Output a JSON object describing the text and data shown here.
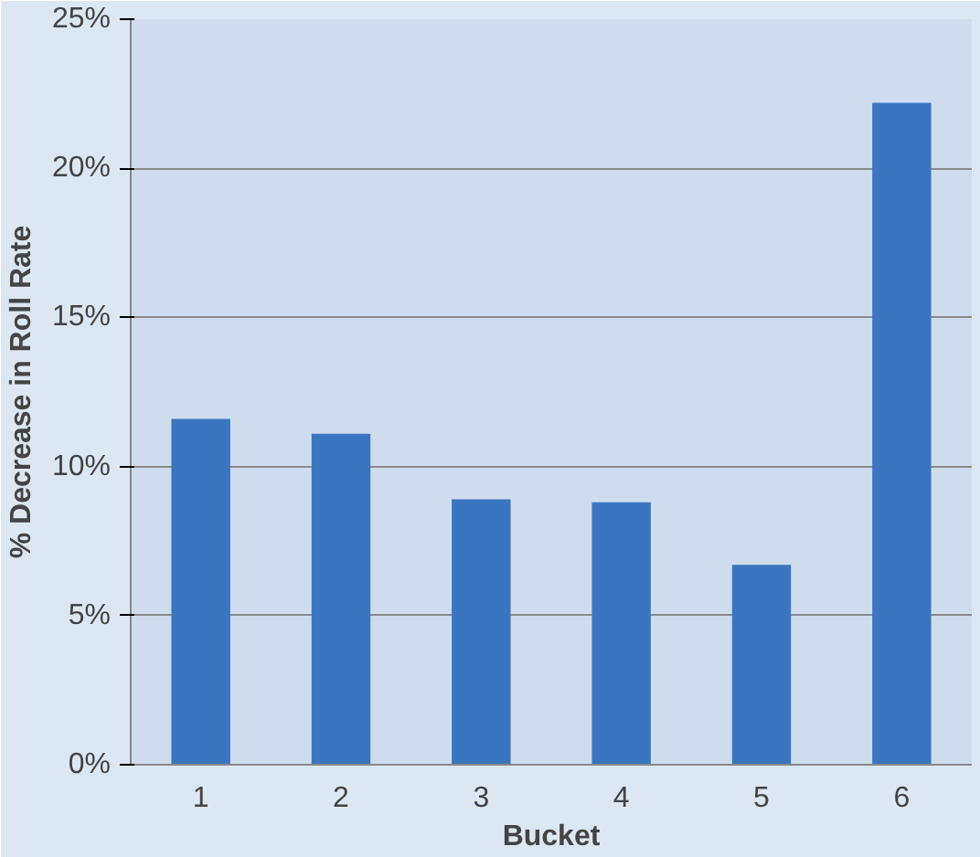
{
  "chart_data": {
    "type": "bar",
    "xlabel": "Bucket",
    "ylabel": "% Decrease in Roll Rate",
    "categories": [
      "1",
      "2",
      "3",
      "4",
      "5",
      "6"
    ],
    "values": [
      11.6,
      11.1,
      8.9,
      8.8,
      6.7,
      22.2
    ],
    "color": "#3a76bf",
    "ylim": [
      0,
      25
    ],
    "yticks": [
      {
        "value": 0,
        "label": "0%"
      },
      {
        "value": 5,
        "label": "5%"
      },
      {
        "value": 10,
        "label": "10%"
      },
      {
        "value": 15,
        "label": "15%"
      },
      {
        "value": 20,
        "label": "20%"
      },
      {
        "value": 25,
        "label": "25%"
      }
    ],
    "grid": "y"
  }
}
